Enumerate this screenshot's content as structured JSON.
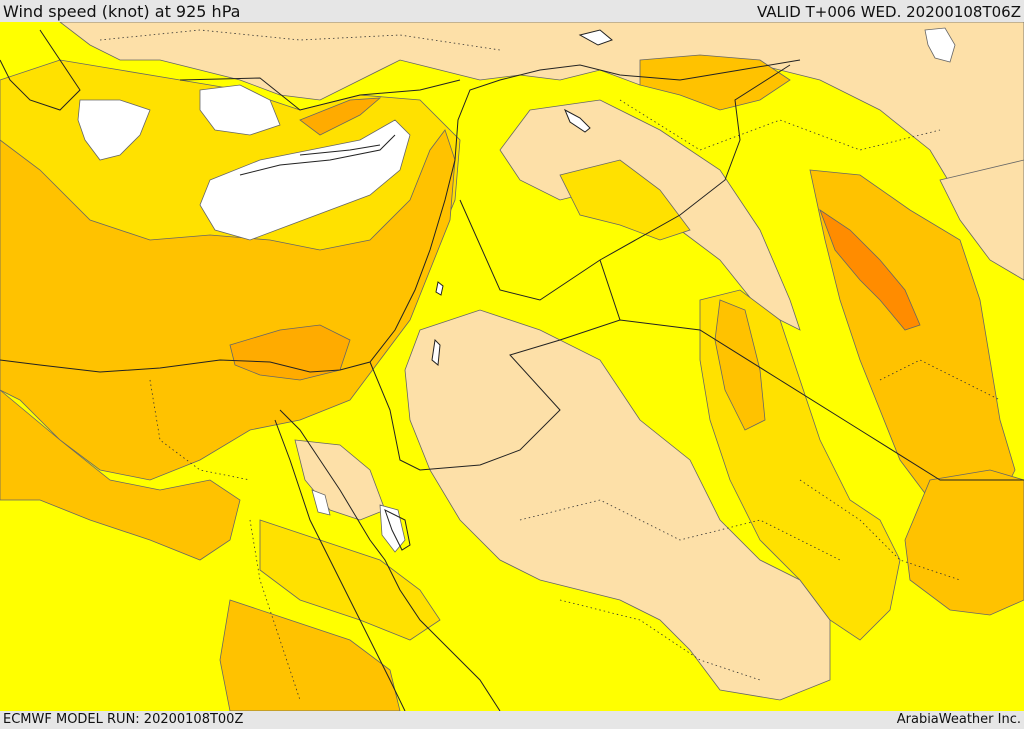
{
  "header": {
    "title": "Wind speed (knot) at 925 hPa",
    "valid": "VALID T+006 WED. 20200108T06Z"
  },
  "footer": {
    "model_run": "ECMWF MODEL RUN: 20200108T00Z",
    "credit": "ArabiaWeather Inc."
  },
  "colors": {
    "calm": "#ffffff",
    "light": "#fde0a8",
    "light_moderate": "#ffff00",
    "moderate": "#ffe100",
    "fresh": "#ffc200",
    "strong": "#ffab00",
    "very_strong": "#ff8c00",
    "contour": "#555555",
    "border": "#222222",
    "bars": "#e6e6e6"
  }
}
